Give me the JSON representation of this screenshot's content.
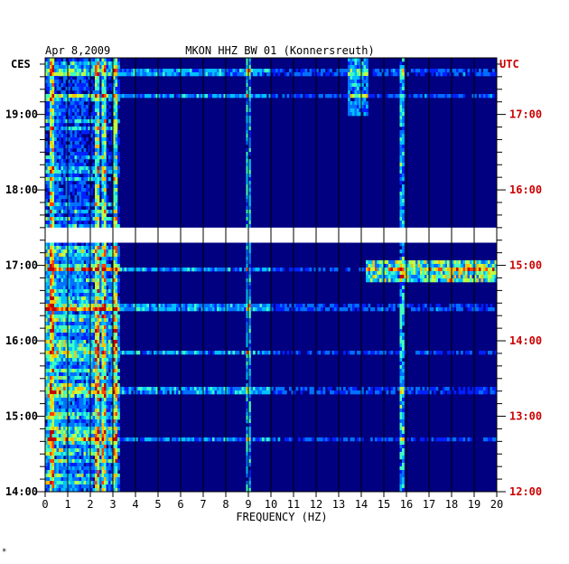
{
  "header": {
    "date": "Apr 8,2009",
    "station": "MKON HHZ BW 01 (Konnersreuth)"
  },
  "chart_data": {
    "type": "heatmap",
    "title": "MKON HHZ BW 01 (Konnersreuth)",
    "date": "Apr 8,2009",
    "xlabel": "FREQUENCY (HZ)",
    "xlim": [
      0,
      20
    ],
    "x_ticks": [
      "0",
      "1",
      "2",
      "3",
      "4",
      "5",
      "6",
      "7",
      "8",
      "9",
      "10",
      "11",
      "12",
      "13",
      "14",
      "15",
      "16",
      "17",
      "18",
      "19",
      "20"
    ],
    "left_axis": {
      "label": "CES",
      "ticks": [
        "19:00",
        "18:00",
        "17:00",
        "16:00",
        "15:00",
        "14:00"
      ],
      "tick_hours": [
        19,
        18,
        17,
        16,
        15,
        14
      ]
    },
    "right_axis": {
      "label": "UTC",
      "ticks": [
        "17:00",
        "16:00",
        "15:00",
        "14:00",
        "13:00",
        "12:00"
      ],
      "tick_hours": [
        17,
        16,
        15,
        14,
        13,
        12
      ]
    },
    "time_range_ces": [
      14.0,
      19.75
    ],
    "data_gap_ces": [
      17.3,
      17.5
    ],
    "colormap": [
      "#000080",
      "#0000c0",
      "#0020ff",
      "#0070ff",
      "#00c0ff",
      "#40ffc0",
      "#c0ff40",
      "#ffc000",
      "#ff4000",
      "#c00000"
    ],
    "persistent_lines_hz": [
      0.3,
      2.3,
      2.6,
      3.1,
      9.0,
      15.8
    ],
    "broadband_bursts_ces": [
      19.55,
      19.25,
      16.95,
      16.45,
      15.85,
      15.35,
      14.7
    ]
  },
  "corner_mark": "*"
}
